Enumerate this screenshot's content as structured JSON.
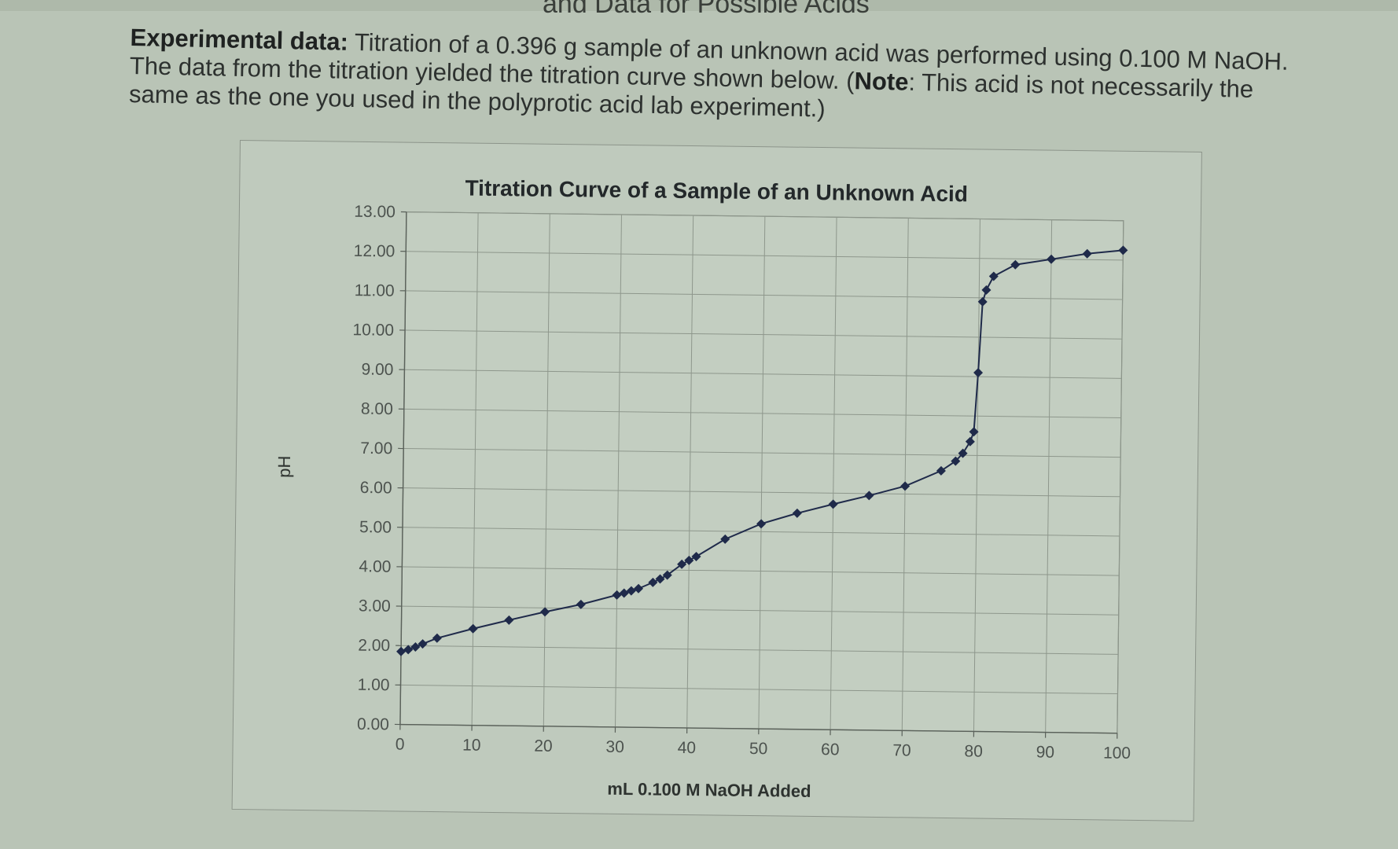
{
  "header_partial": "and Data for Possible Acids",
  "intro": {
    "label": "Experimental data:",
    "text1": " Titration of a 0.396 g sample of an unknown acid was performed using 0.100 M NaOH.  The data from the titration yielded the titration curve shown below.  (",
    "note_label": "Note",
    "text2": ":  This acid is not necessarily the same as the one you used in the polyprotic acid lab experiment.)"
  },
  "chart_data": {
    "type": "scatter",
    "title": "Titration Curve of a Sample of an Unknown Acid",
    "xlabel": "mL 0.100 M NaOH Added",
    "ylabel": "pH",
    "xlim": [
      0,
      100
    ],
    "ylim": [
      0,
      13
    ],
    "x_ticks": [
      0,
      10,
      20,
      30,
      40,
      50,
      60,
      70,
      80,
      90,
      100
    ],
    "y_ticks": [
      "0.00",
      "1.00",
      "2.00",
      "3.00",
      "4.00",
      "5.00",
      "6.00",
      "7.00",
      "8.00",
      "9.00",
      "10.00",
      "11.00",
      "12.00",
      "13.00"
    ],
    "grid": true,
    "marker": "diamond",
    "line_color": "#1f2a4a",
    "series": [
      {
        "x": [
          0,
          1,
          2,
          3,
          5,
          10,
          15,
          20,
          25,
          30,
          31,
          32,
          33,
          35,
          36,
          37,
          39,
          40,
          41,
          45,
          50,
          55,
          60,
          65,
          70,
          75,
          77,
          78,
          79,
          79.5,
          80,
          80.5,
          81,
          82,
          85,
          90,
          95,
          100
        ],
        "y": [
          1.85,
          1.9,
          1.97,
          2.05,
          2.2,
          2.45,
          2.68,
          2.9,
          3.1,
          3.35,
          3.4,
          3.46,
          3.52,
          3.68,
          3.77,
          3.87,
          4.15,
          4.25,
          4.35,
          4.8,
          5.2,
          5.48,
          5.72,
          5.95,
          6.2,
          6.6,
          6.85,
          7.05,
          7.35,
          7.6,
          9.1,
          10.9,
          11.2,
          11.55,
          11.85,
          12.0,
          12.15,
          12.25
        ]
      }
    ]
  }
}
